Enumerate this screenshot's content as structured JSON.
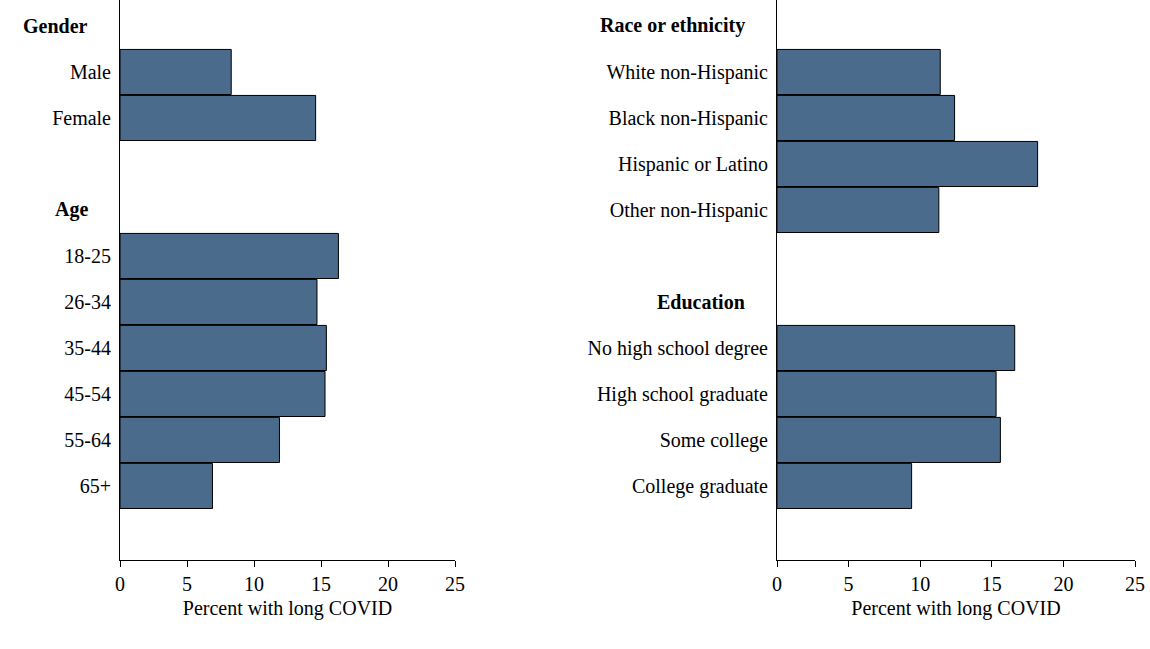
{
  "chart_data": [
    {
      "type": "bar",
      "orientation": "horizontal",
      "xlabel": "Percent with long COVID",
      "xlim": [
        0,
        25
      ],
      "xticks": [
        0,
        5,
        10,
        15,
        20,
        25
      ],
      "color": "#4a6b8c",
      "groups": [
        {
          "title": "Gender",
          "categories": [
            "Male",
            "Female"
          ],
          "values": [
            8.3,
            14.6
          ]
        },
        {
          "title": "Age",
          "categories": [
            "18-25",
            "26-34",
            "35-44",
            "45-54",
            "55-64",
            "65+"
          ],
          "values": [
            16.3,
            14.7,
            15.4,
            15.3,
            11.9,
            6.9
          ]
        }
      ]
    },
    {
      "type": "bar",
      "orientation": "horizontal",
      "xlabel": "Percent with long COVID",
      "xlim": [
        0,
        25
      ],
      "xticks": [
        0,
        5,
        10,
        15,
        20,
        25
      ],
      "color": "#4a6b8c",
      "groups": [
        {
          "title": "Race or ethnicity",
          "categories": [
            "White non-Hispanic",
            "Black non-Hispanic",
            "Hispanic or Latino",
            "Other non-Hispanic"
          ],
          "values": [
            11.4,
            12.4,
            18.2,
            11.3
          ]
        },
        {
          "title": "Education",
          "categories": [
            "No high school degree",
            "High school graduate",
            "Some college",
            "College graduate"
          ],
          "values": [
            16.6,
            15.3,
            15.6,
            9.4
          ]
        }
      ]
    }
  ]
}
